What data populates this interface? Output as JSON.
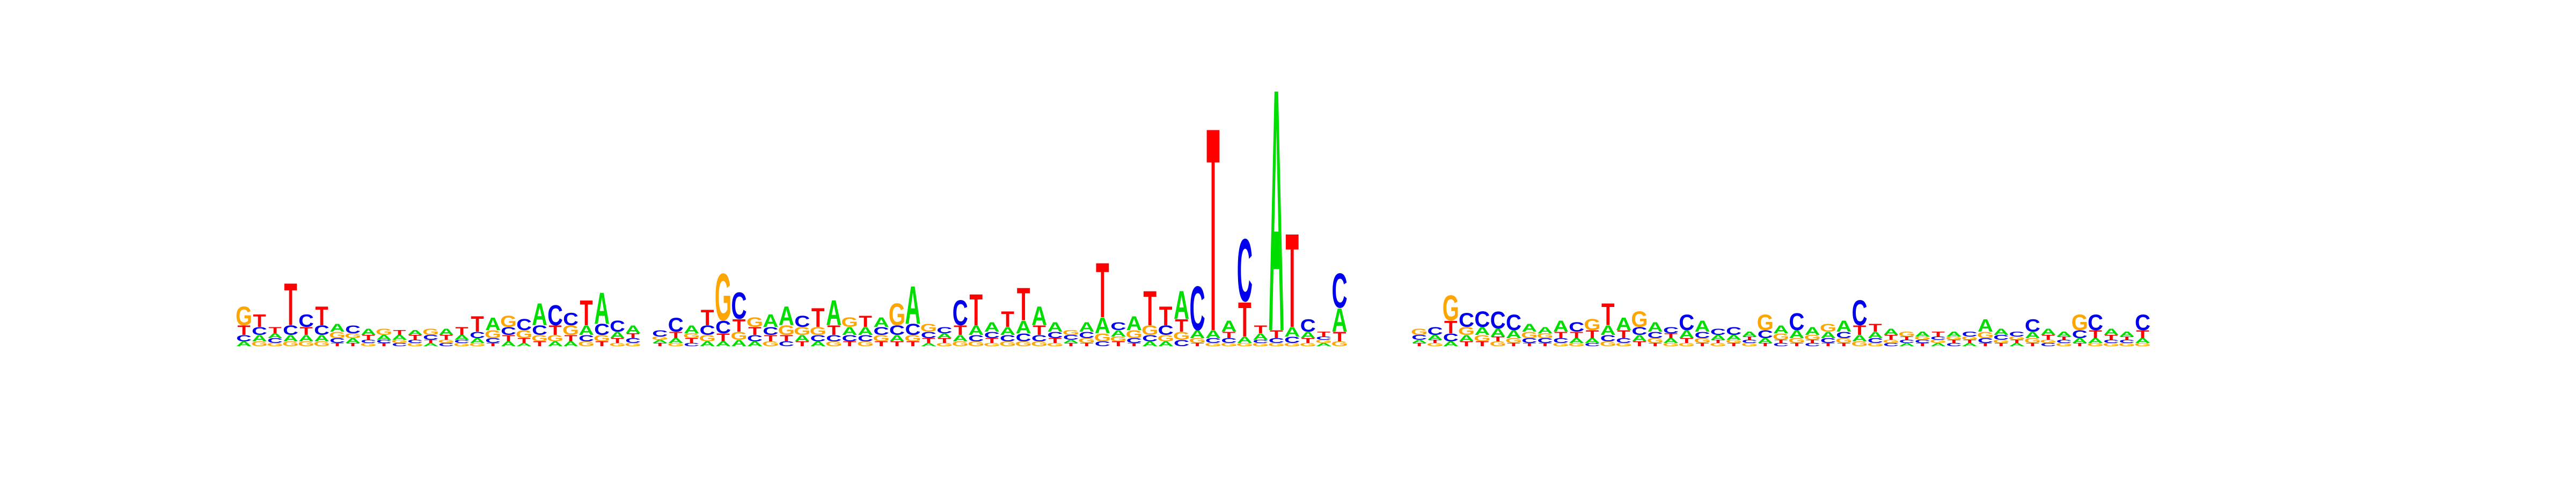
{
  "chart_data": {
    "type": "sequence-logo",
    "title": "",
    "xlabel": "",
    "ylabel": "",
    "alphabet": [
      "A",
      "C",
      "G",
      "T"
    ],
    "colors": {
      "A": "#00dd00",
      "C": "#0000ee",
      "G": "#ffa500",
      "T": "#ff0000"
    },
    "ylim": [
      0,
      2
    ],
    "segments": [
      {
        "name": "left",
        "columns": [
          {
            "G": 0.12,
            "T": 0.06,
            "C": 0.04,
            "A": 0.03
          },
          {
            "T": 0.08,
            "C": 0.05,
            "A": 0.04,
            "G": 0.03
          },
          {
            "T": 0.04,
            "C": 0.03,
            "A": 0.03,
            "G": 0.02
          },
          {
            "T": 0.27,
            "C": 0.06,
            "A": 0.04,
            "G": 0.03
          },
          {
            "C": 0.08,
            "T": 0.05,
            "A": 0.04,
            "G": 0.03
          },
          {
            "T": 0.12,
            "C": 0.06,
            "A": 0.04,
            "G": 0.03
          },
          {
            "A": 0.05,
            "G": 0.04,
            "C": 0.03,
            "T": 0.02
          },
          {
            "C": 0.05,
            "A": 0.03,
            "G": 0.03,
            "T": 0.02
          },
          {
            "A": 0.04,
            "T": 0.03,
            "G": 0.02,
            "C": 0.02
          },
          {
            "G": 0.04,
            "A": 0.03,
            "T": 0.02,
            "C": 0.02
          },
          {
            "A": 0.03,
            "T": 0.03,
            "C": 0.02,
            "G": 0.02
          },
          {
            "T": 0.03,
            "A": 0.03,
            "G": 0.02,
            "C": 0.02
          },
          {
            "G": 0.04,
            "C": 0.03,
            "A": 0.02,
            "T": 0.02
          },
          {
            "A": 0.04,
            "T": 0.03,
            "C": 0.02,
            "G": 0.02
          },
          {
            "T": 0.05,
            "A": 0.03,
            "G": 0.02,
            "C": 0.02
          },
          {
            "T": 0.1,
            "C": 0.04,
            "A": 0.03,
            "G": 0.02
          },
          {
            "A": 0.08,
            "G": 0.05,
            "C": 0.03,
            "T": 0.02
          },
          {
            "G": 0.07,
            "C": 0.05,
            "T": 0.04,
            "A": 0.03
          },
          {
            "C": 0.07,
            "G": 0.05,
            "T": 0.03,
            "A": 0.02
          },
          {
            "A": 0.14,
            "C": 0.06,
            "G": 0.04,
            "T": 0.03
          },
          {
            "C": 0.13,
            "T": 0.06,
            "G": 0.04,
            "A": 0.03
          },
          {
            "C": 0.08,
            "G": 0.06,
            "T": 0.04,
            "A": 0.03
          },
          {
            "T": 0.16,
            "A": 0.06,
            "C": 0.04,
            "G": 0.03
          },
          {
            "A": 0.2,
            "C": 0.07,
            "G": 0.04,
            "T": 0.03
          },
          {
            "C": 0.07,
            "A": 0.04,
            "T": 0.03,
            "G": 0.02
          },
          {
            "A": 0.05,
            "C": 0.03,
            "T": 0.03,
            "G": 0.02
          }
        ]
      },
      {
        "name": "middle",
        "columns": [
          {
            "C": 0.04,
            "T": 0.02,
            "A": 0.02,
            "G": 0.02
          },
          {
            "C": 0.09,
            "T": 0.04,
            "A": 0.03,
            "G": 0.02
          },
          {
            "A": 0.05,
            "T": 0.03,
            "G": 0.03,
            "C": 0.02
          },
          {
            "T": 0.1,
            "C": 0.06,
            "G": 0.04,
            "A": 0.03
          },
          {
            "G": 0.3,
            "C": 0.08,
            "T": 0.05,
            "A": 0.03
          },
          {
            "C": 0.17,
            "T": 0.08,
            "G": 0.05,
            "A": 0.04
          },
          {
            "G": 0.06,
            "T": 0.05,
            "C": 0.04,
            "A": 0.03
          },
          {
            "A": 0.08,
            "C": 0.05,
            "T": 0.04,
            "G": 0.03
          },
          {
            "A": 0.12,
            "G": 0.06,
            "T": 0.04,
            "C": 0.03
          },
          {
            "C": 0.07,
            "G": 0.05,
            "A": 0.04,
            "T": 0.03
          },
          {
            "T": 0.12,
            "G": 0.05,
            "C": 0.04,
            "A": 0.03
          },
          {
            "A": 0.16,
            "T": 0.06,
            "C": 0.04,
            "G": 0.03
          },
          {
            "G": 0.06,
            "A": 0.05,
            "C": 0.04,
            "T": 0.03
          },
          {
            "T": 0.07,
            "A": 0.05,
            "C": 0.04,
            "G": 0.03
          },
          {
            "A": 0.06,
            "C": 0.05,
            "G": 0.04,
            "T": 0.03
          },
          {
            "G": 0.14,
            "C": 0.06,
            "A": 0.04,
            "T": 0.03
          },
          {
            "A": 0.24,
            "C": 0.07,
            "G": 0.04,
            "T": 0.03
          },
          {
            "G": 0.05,
            "C": 0.04,
            "T": 0.03,
            "A": 0.02
          },
          {
            "C": 0.04,
            "T": 0.03,
            "A": 0.03,
            "G": 0.02
          },
          {
            "C": 0.16,
            "T": 0.06,
            "A": 0.04,
            "G": 0.03
          },
          {
            "T": 0.2,
            "A": 0.06,
            "C": 0.04,
            "G": 0.03
          },
          {
            "A": 0.06,
            "C": 0.04,
            "T": 0.03,
            "G": 0.02
          },
          {
            "T": 0.1,
            "A": 0.05,
            "C": 0.04,
            "G": 0.03
          },
          {
            "T": 0.21,
            "A": 0.08,
            "C": 0.05,
            "G": 0.03
          },
          {
            "A": 0.12,
            "T": 0.06,
            "C": 0.04,
            "G": 0.03
          },
          {
            "A": 0.06,
            "C": 0.04,
            "T": 0.03,
            "G": 0.02
          },
          {
            "C": 0.03,
            "G": 0.03,
            "T": 0.02,
            "A": 0.02
          },
          {
            "A": 0.06,
            "C": 0.04,
            "G": 0.03,
            "T": 0.02
          },
          {
            "T": 0.35,
            "A": 0.1,
            "G": 0.05,
            "C": 0.03
          },
          {
            "C": 0.05,
            "A": 0.04,
            "T": 0.03,
            "G": 0.03
          },
          {
            "A": 0.09,
            "G": 0.05,
            "C": 0.03,
            "T": 0.02
          },
          {
            "T": 0.22,
            "G": 0.06,
            "C": 0.04,
            "A": 0.03
          },
          {
            "T": 0.12,
            "C": 0.06,
            "G": 0.04,
            "A": 0.03
          },
          {
            "A": 0.18,
            "T": 0.08,
            "G": 0.05,
            "C": 0.04
          },
          {
            "C": 0.28,
            "A": 0.05,
            "G": 0.03,
            "T": 0.02
          },
          {
            "T": 1.3,
            "A": 0.05,
            "C": 0.03,
            "G": 0.02
          },
          {
            "A": 0.07,
            "T": 0.04,
            "C": 0.03,
            "G": 0.02
          },
          {
            "C": 0.4,
            "T": 0.22,
            "A": 0.04,
            "G": 0.02
          },
          {
            "T": 0.05,
            "A": 0.04,
            "G": 0.02,
            "C": 0.02
          },
          {
            "A": 1.55,
            "T": 0.05,
            "C": 0.03,
            "G": 0.02
          },
          {
            "T": 0.6,
            "A": 0.06,
            "C": 0.04,
            "G": 0.02
          },
          {
            "C": 0.08,
            "A": 0.04,
            "T": 0.03,
            "G": 0.02
          },
          {
            "T": 0.03,
            "A": 0.02,
            "G": 0.02,
            "C": 0.02
          },
          {
            "C": 0.22,
            "A": 0.15,
            "T": 0.06,
            "G": 0.03
          }
        ]
      },
      {
        "name": "right",
        "columns": [
          {
            "G": 0.04,
            "C": 0.03,
            "T": 0.02,
            "A": 0.02
          },
          {
            "C": 0.05,
            "A": 0.03,
            "G": 0.02,
            "T": 0.02
          },
          {
            "G": 0.16,
            "T": 0.08,
            "C": 0.05,
            "A": 0.03
          },
          {
            "C": 0.09,
            "G": 0.05,
            "A": 0.04,
            "T": 0.03
          },
          {
            "C": 0.1,
            "A": 0.05,
            "G": 0.04,
            "T": 0.03
          },
          {
            "C": 0.11,
            "A": 0.05,
            "G": 0.03,
            "T": 0.03
          },
          {
            "C": 0.1,
            "A": 0.05,
            "G": 0.03,
            "T": 0.02
          },
          {
            "A": 0.05,
            "G": 0.04,
            "C": 0.03,
            "T": 0.02
          },
          {
            "A": 0.04,
            "C": 0.03,
            "G": 0.03,
            "T": 0.02
          },
          {
            "A": 0.07,
            "T": 0.04,
            "C": 0.03,
            "G": 0.02
          },
          {
            "C": 0.06,
            "T": 0.04,
            "A": 0.03,
            "G": 0.02
          },
          {
            "G": 0.07,
            "T": 0.05,
            "A": 0.03,
            "C": 0.02
          },
          {
            "T": 0.14,
            "A": 0.06,
            "C": 0.04,
            "G": 0.03
          },
          {
            "A": 0.08,
            "T": 0.05,
            "C": 0.03,
            "G": 0.02
          },
          {
            "G": 0.1,
            "C": 0.05,
            "A": 0.04,
            "T": 0.03
          },
          {
            "A": 0.06,
            "C": 0.04,
            "G": 0.03,
            "T": 0.02
          },
          {
            "C": 0.04,
            "A": 0.03,
            "T": 0.03,
            "G": 0.02
          },
          {
            "C": 0.1,
            "A": 0.05,
            "T": 0.03,
            "G": 0.02
          },
          {
            "A": 0.07,
            "C": 0.04,
            "G": 0.03,
            "T": 0.02
          },
          {
            "C": 0.04,
            "A": 0.03,
            "G": 0.02,
            "T": 0.02
          },
          {
            "C": 0.05,
            "A": 0.03,
            "T": 0.02,
            "G": 0.02
          },
          {
            "A": 0.03,
            "G": 0.02,
            "C": 0.02,
            "T": 0.02
          },
          {
            "G": 0.1,
            "C": 0.05,
            "A": 0.03,
            "T": 0.02
          },
          {
            "A": 0.05,
            "G": 0.04,
            "C": 0.02,
            "T": 0.02
          },
          {
            "C": 0.11,
            "A": 0.05,
            "G": 0.03,
            "T": 0.02
          },
          {
            "A": 0.05,
            "G": 0.03,
            "C": 0.02,
            "T": 0.02
          },
          {
            "G": 0.05,
            "A": 0.04,
            "C": 0.03,
            "T": 0.02
          },
          {
            "A": 0.07,
            "C": 0.04,
            "G": 0.03,
            "T": 0.02
          },
          {
            "C": 0.16,
            "T": 0.06,
            "A": 0.04,
            "G": 0.03
          },
          {
            "T": 0.05,
            "A": 0.04,
            "C": 0.03,
            "G": 0.02
          },
          {
            "A": 0.04,
            "T": 0.03,
            "C": 0.02,
            "G": 0.02
          },
          {
            "G": 0.03,
            "A": 0.02,
            "C": 0.02,
            "T": 0.02
          },
          {
            "A": 0.03,
            "T": 0.02,
            "C": 0.02,
            "G": 0.02
          },
          {
            "T": 0.03,
            "A": 0.02,
            "G": 0.02,
            "C": 0.02
          },
          {
            "A": 0.03,
            "C": 0.02,
            "T": 0.02,
            "G": 0.02
          },
          {
            "C": 0.03,
            "A": 0.02,
            "T": 0.02,
            "G": 0.02
          },
          {
            "A": 0.08,
            "G": 0.04,
            "C": 0.03,
            "T": 0.02
          },
          {
            "A": 0.04,
            "C": 0.03,
            "T": 0.02,
            "G": 0.02
          },
          {
            "C": 0.03,
            "A": 0.02,
            "T": 0.02,
            "G": 0.02
          },
          {
            "C": 0.08,
            "A": 0.04,
            "G": 0.03,
            "T": 0.02
          },
          {
            "A": 0.04,
            "T": 0.03,
            "C": 0.02,
            "G": 0.02
          },
          {
            "A": 0.03,
            "G": 0.02,
            "C": 0.02,
            "T": 0.02
          },
          {
            "G": 0.1,
            "C": 0.05,
            "A": 0.03,
            "T": 0.02
          },
          {
            "C": 0.1,
            "T": 0.05,
            "A": 0.03,
            "G": 0.02
          },
          {
            "A": 0.04,
            "T": 0.03,
            "G": 0.02,
            "C": 0.02
          },
          {
            "A": 0.03,
            "G": 0.02,
            "C": 0.02,
            "T": 0.02
          },
          {
            "C": 0.1,
            "T": 0.05,
            "A": 0.03,
            "G": 0.02
          }
        ]
      }
    ]
  }
}
